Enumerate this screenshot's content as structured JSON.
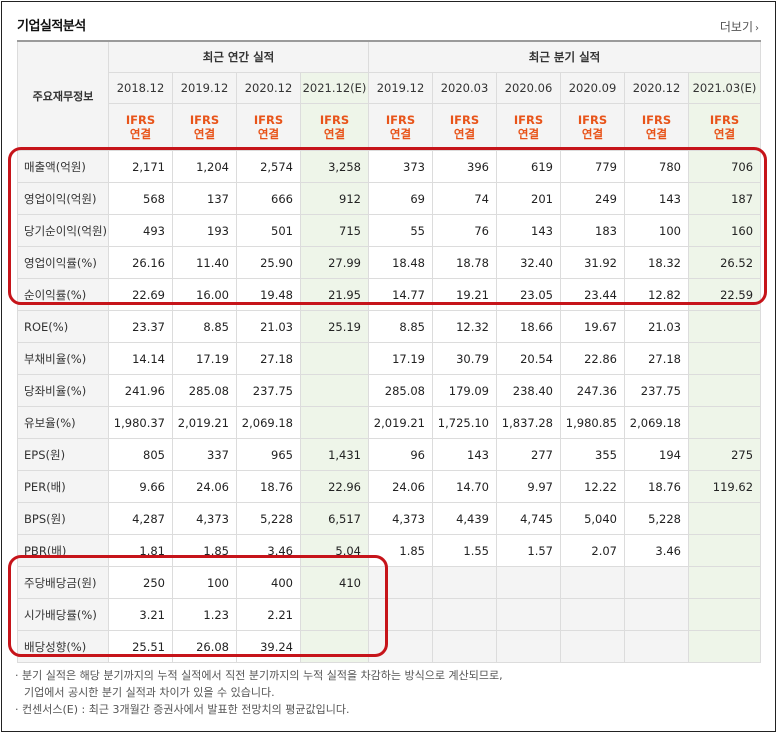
{
  "title": "기업실적분석",
  "more_label": "더보기",
  "more_icon": "chevron-right-icon",
  "header": {
    "main_label": "주요재무정보",
    "annual_label": "최근 연간 실적",
    "quarter_label": "최근 분기 실적",
    "annual_periods": [
      "2018.12",
      "2019.12",
      "2020.12",
      "2021.12(E)"
    ],
    "quarter_periods": [
      "2019.12",
      "2020.03",
      "2020.06",
      "2020.09",
      "2020.12",
      "2021.03(E)"
    ],
    "std_top": "IFRS",
    "std_bottom": "연결"
  },
  "rows": [
    {
      "label": "매출액(억원)",
      "values": [
        "2,171",
        "1,204",
        "2,574",
        "3,258",
        "373",
        "396",
        "619",
        "779",
        "780",
        "706"
      ]
    },
    {
      "label": "영업이익(억원)",
      "values": [
        "568",
        "137",
        "666",
        "912",
        "69",
        "74",
        "201",
        "249",
        "143",
        "187"
      ]
    },
    {
      "label": "당기순이익(억원)",
      "values": [
        "493",
        "193",
        "501",
        "715",
        "55",
        "76",
        "143",
        "183",
        "100",
        "160"
      ]
    },
    {
      "label": "영업이익률(%)",
      "values": [
        "26.16",
        "11.40",
        "25.90",
        "27.99",
        "18.48",
        "18.78",
        "32.40",
        "31.92",
        "18.32",
        "26.52"
      ]
    },
    {
      "label": "순이익률(%)",
      "values": [
        "22.69",
        "16.00",
        "19.48",
        "21.95",
        "14.77",
        "19.21",
        "23.05",
        "23.44",
        "12.82",
        "22.59"
      ]
    },
    {
      "label": "ROE(%)",
      "values": [
        "23.37",
        "8.85",
        "21.03",
        "25.19",
        "8.85",
        "12.32",
        "18.66",
        "19.67",
        "21.03",
        ""
      ]
    },
    {
      "label": "부채비율(%)",
      "values": [
        "14.14",
        "17.19",
        "27.18",
        "",
        "17.19",
        "30.79",
        "20.54",
        "22.86",
        "27.18",
        ""
      ]
    },
    {
      "label": "당좌비율(%)",
      "values": [
        "241.96",
        "285.08",
        "237.75",
        "",
        "285.08",
        "179.09",
        "238.40",
        "247.36",
        "237.75",
        ""
      ]
    },
    {
      "label": "유보율(%)",
      "values": [
        "1,980.37",
        "2,019.21",
        "2,069.18",
        "",
        "2,019.21",
        "1,725.10",
        "1,837.28",
        "1,980.85",
        "2,069.18",
        ""
      ]
    },
    {
      "label": "EPS(원)",
      "values": [
        "805",
        "337",
        "965",
        "1,431",
        "96",
        "143",
        "277",
        "355",
        "194",
        "275"
      ]
    },
    {
      "label": "PER(배)",
      "values": [
        "9.66",
        "24.06",
        "18.76",
        "22.96",
        "24.06",
        "14.70",
        "9.97",
        "12.22",
        "18.76",
        "119.62"
      ]
    },
    {
      "label": "BPS(원)",
      "values": [
        "4,287",
        "4,373",
        "5,228",
        "6,517",
        "4,373",
        "4,439",
        "4,745",
        "5,040",
        "5,228",
        ""
      ]
    },
    {
      "label": "PBR(배)",
      "values": [
        "1.81",
        "1.85",
        "3.46",
        "5.04",
        "1.85",
        "1.55",
        "1.57",
        "2.07",
        "3.46",
        ""
      ]
    },
    {
      "label": "주당배당금(원)",
      "values": [
        "250",
        "100",
        "400",
        "410",
        "",
        "",
        "",
        "",
        "",
        ""
      ]
    },
    {
      "label": "시가배당률(%)",
      "values": [
        "3.21",
        "1.23",
        "2.21",
        "",
        "",
        "",
        "",
        "",
        "",
        ""
      ]
    },
    {
      "label": "배당성향(%)",
      "values": [
        "25.51",
        "26.08",
        "39.24",
        "",
        "",
        "",
        "",
        "",
        "",
        ""
      ]
    }
  ],
  "notes": [
    "분기 실적은 해당 분기까지의 누적 실적에서 직전 분기까지의 누적 실적을 차감하는 방식으로 계산되므로,",
    "기업에서 공시한 분기 실적과 차이가 있을 수 있습니다.",
    "컨센서스(E) : 최근 3개월간 증권사에서 발표한 전망치의 평균값입니다."
  ],
  "highlight_color": "#c6141a"
}
